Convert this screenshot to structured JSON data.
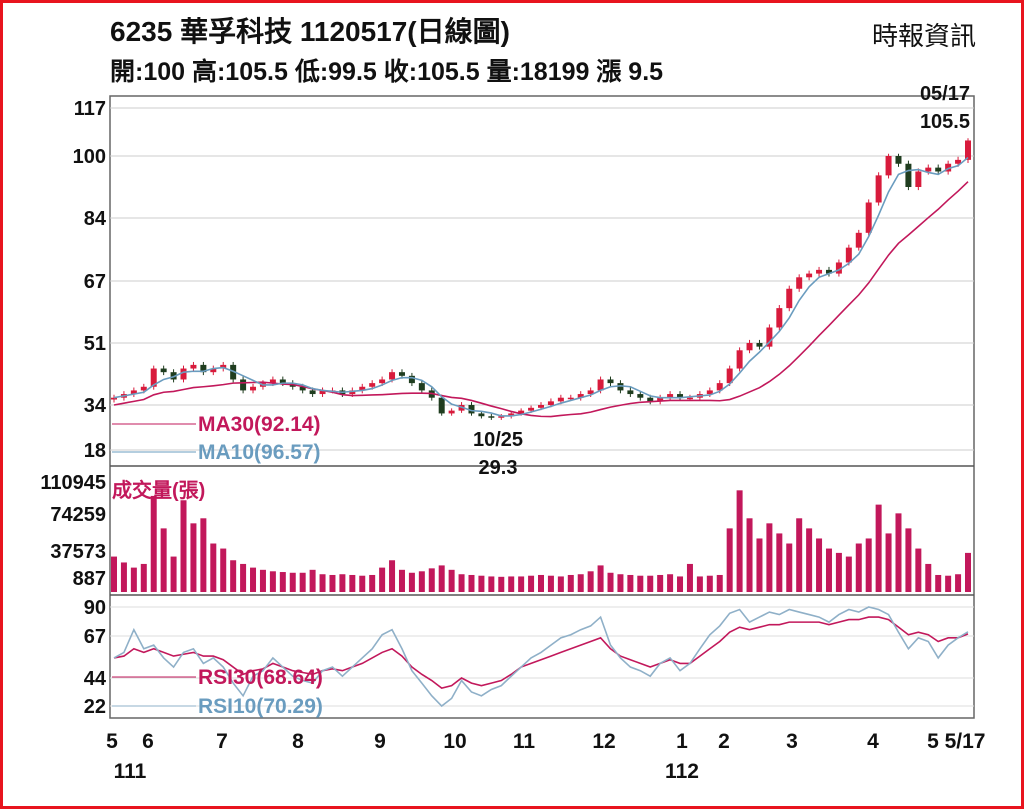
{
  "header": {
    "title": "6235  華孚科技 1120517(日線圖)",
    "source": "時報資訊",
    "quote": "開:100 高:105.5 低:99.5 收:105.5 量:18199 漲 9.5"
  },
  "chart_data": {
    "type": "candlestick",
    "title": "6235 華孚科技 1120517(日線圖)",
    "price_axis": {
      "ticks": [
        117,
        100,
        84,
        67,
        51,
        34,
        18
      ]
    },
    "volume_axis": {
      "ticks": [
        110945,
        74259,
        37573,
        887
      ],
      "label": "成交量(張)"
    },
    "rsi_axis": {
      "ticks": [
        90,
        67,
        44,
        22
      ]
    },
    "x_ticks": [
      "5",
      "6",
      "7",
      "8",
      "9",
      "10",
      "11",
      "12",
      "1",
      "2",
      "3",
      "4",
      "5",
      "5/17"
    ],
    "year_labels": [
      "111",
      "112"
    ],
    "legend": {
      "ma30": "MA30(92.14)",
      "ma10": "MA10(96.57)",
      "rsi30": "RSI30(68.64)",
      "rsi10": "RSI10(70.29)"
    },
    "annotations": {
      "high_date": "05/17",
      "high_value": "105.5",
      "low_date": "10/25",
      "low_value": "29.3"
    },
    "close": [
      36,
      37,
      38,
      39,
      44,
      43,
      41,
      44,
      45,
      43,
      44,
      45,
      41,
      38,
      39,
      40,
      41,
      40,
      39,
      38,
      37,
      38,
      38,
      37,
      38,
      39,
      40,
      41,
      43,
      42,
      40,
      38,
      36,
      31,
      32,
      34,
      31,
      30,
      29.5,
      30,
      31,
      32,
      33,
      34,
      35,
      36,
      36,
      37,
      38,
      41,
      40,
      38,
      37,
      36,
      35,
      36,
      37,
      36,
      36,
      37,
      38,
      40,
      44,
      49,
      51,
      50,
      55,
      60,
      65,
      68,
      69,
      70,
      69,
      72,
      76,
      80,
      88,
      95,
      100,
      98,
      92,
      96,
      97,
      96,
      98,
      99,
      105.5
    ],
    "volume": [
      30000,
      22000,
      15000,
      20000,
      95000,
      60000,
      30000,
      90000,
      65000,
      70000,
      45000,
      40000,
      25000,
      20000,
      15000,
      12000,
      10000,
      9000,
      8000,
      8000,
      12000,
      6000,
      5000,
      6000,
      5000,
      4000,
      5000,
      15000,
      25000,
      12000,
      8000,
      10000,
      14000,
      18000,
      12000,
      6000,
      5000,
      4000,
      3000,
      2500,
      3000,
      3000,
      4000,
      5000,
      4000,
      3000,
      5000,
      6000,
      10000,
      18000,
      8000,
      6000,
      5000,
      4000,
      4000,
      5000,
      6000,
      3000,
      20000,
      3000,
      4000,
      5000,
      60000,
      120000,
      70000,
      50000,
      65000,
      55000,
      45000,
      70000,
      60000,
      50000,
      40000,
      35000,
      30000,
      45000,
      50000,
      85000,
      55000,
      75000,
      60000,
      40000,
      20000,
      5000,
      4000,
      6000,
      35000
    ],
    "rsi10": [
      55,
      58,
      72,
      60,
      62,
      55,
      50,
      58,
      60,
      52,
      55,
      50,
      40,
      30,
      45,
      48,
      55,
      50,
      45,
      42,
      40,
      48,
      50,
      45,
      50,
      55,
      60,
      68,
      72,
      60,
      48,
      40,
      30,
      22,
      28,
      42,
      33,
      30,
      35,
      38,
      45,
      50,
      55,
      58,
      62,
      66,
      68,
      72,
      75,
      82,
      62,
      55,
      50,
      48,
      45,
      52,
      55,
      48,
      52,
      60,
      68,
      75,
      85,
      88,
      78,
      82,
      86,
      84,
      88,
      86,
      84,
      82,
      78,
      84,
      88,
      86,
      90,
      88,
      84,
      70,
      60,
      66,
      64,
      55,
      62,
      66,
      70.29
    ],
    "rsi30": [
      55,
      56,
      60,
      58,
      60,
      58,
      56,
      57,
      58,
      56,
      56,
      54,
      50,
      46,
      48,
      49,
      52,
      50,
      48,
      47,
      46,
      48,
      49,
      48,
      50,
      52,
      55,
      58,
      60,
      56,
      50,
      46,
      42,
      36,
      38,
      44,
      40,
      38,
      40,
      42,
      46,
      50,
      52,
      54,
      56,
      58,
      60,
      62,
      64,
      66,
      60,
      56,
      54,
      52,
      50,
      52,
      54,
      52,
      52,
      56,
      60,
      64,
      70,
      74,
      72,
      74,
      76,
      76,
      78,
      78,
      78,
      78,
      76,
      78,
      80,
      80,
      82,
      82,
      80,
      74,
      68,
      70,
      68,
      64,
      66,
      66,
      68.64
    ]
  }
}
